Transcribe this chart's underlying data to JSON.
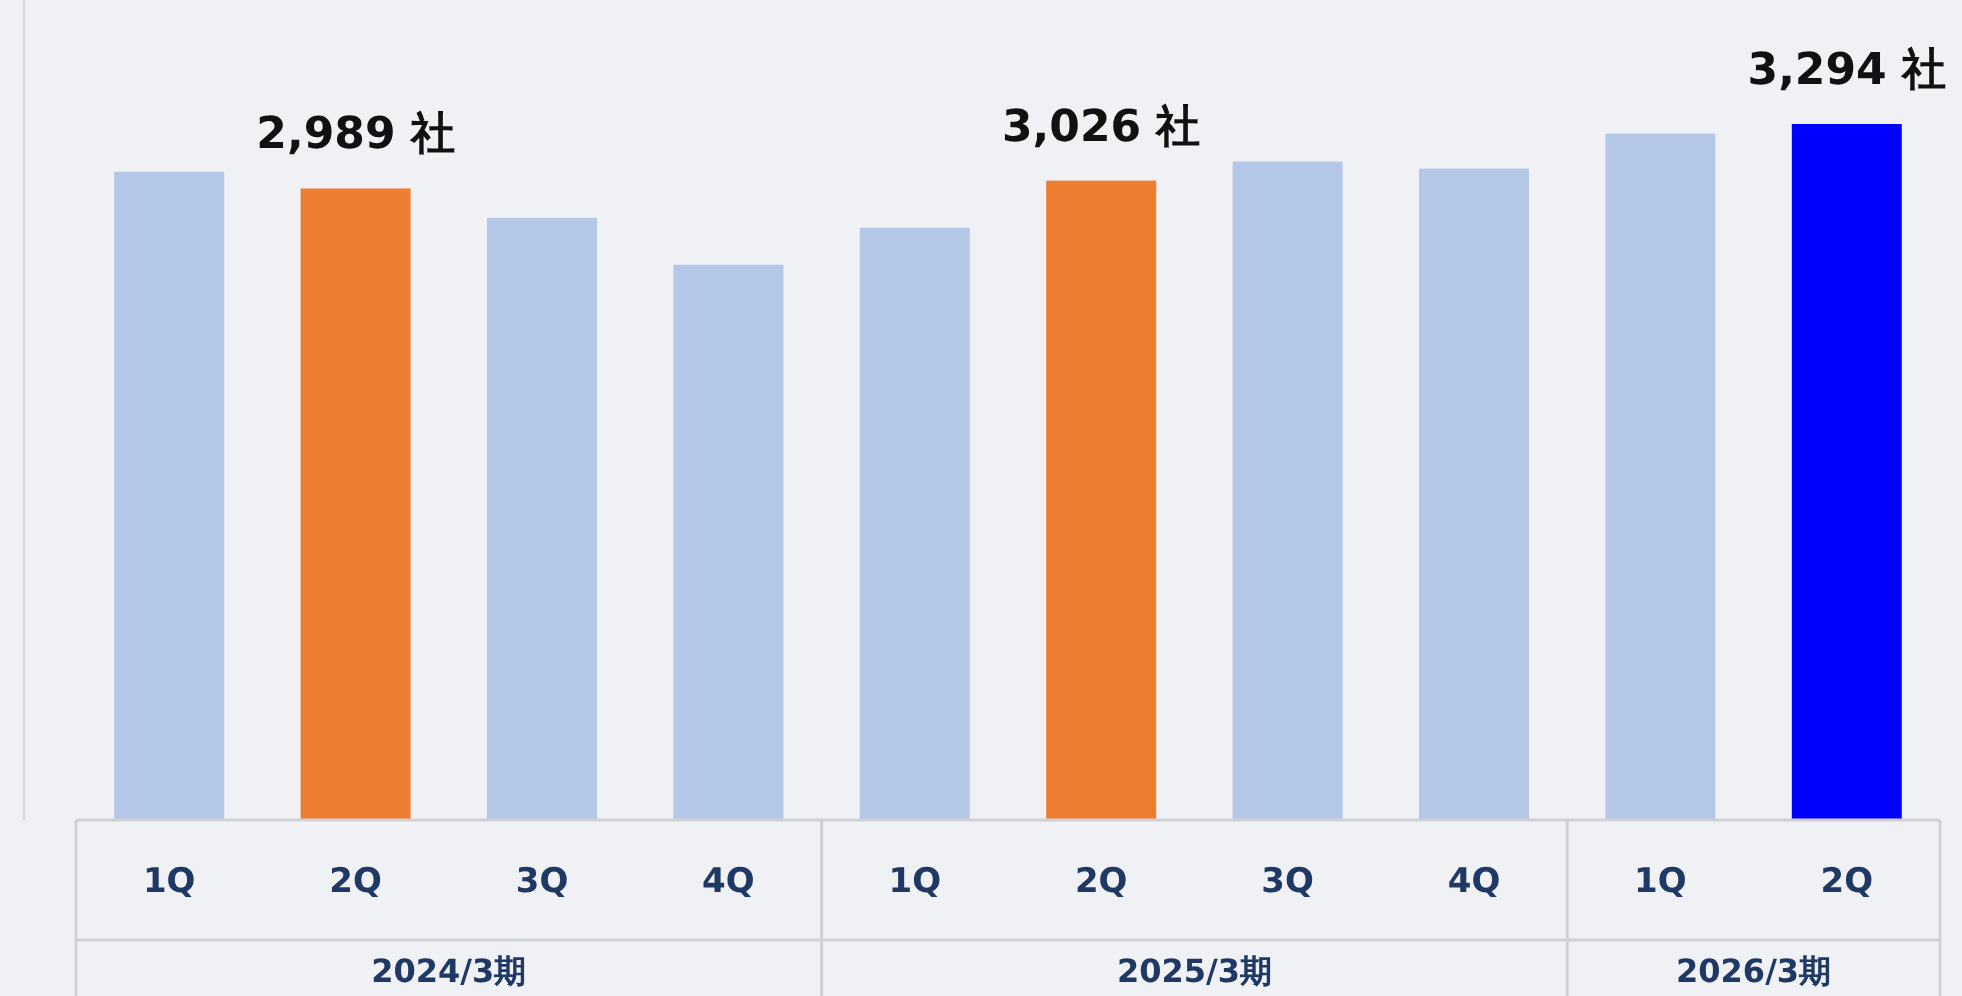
{
  "chart_data": {
    "type": "bar",
    "categories": [
      "1Q",
      "2Q",
      "3Q",
      "4Q",
      "1Q",
      "2Q",
      "3Q",
      "4Q",
      "1Q",
      "2Q"
    ],
    "values": [
      3068,
      2989,
      2850,
      2628,
      2803,
      3026,
      3116,
      3083,
      3248,
      3294
    ],
    "colors": [
      "#b4c7e7",
      "#ed7d31",
      "#b4c7e7",
      "#b4c7e7",
      "#b4c7e7",
      "#ed7d31",
      "#b4c7e7",
      "#b4c7e7",
      "#b4c7e7",
      "#0000ff"
    ],
    "value_labels": [
      null,
      "2,989 社",
      null,
      null,
      null,
      "3,026 社",
      null,
      null,
      null,
      "3,294 社"
    ],
    "annotations": [
      "2024/3期",
      "2025/3期",
      "2026/3期"
    ]
  }
}
